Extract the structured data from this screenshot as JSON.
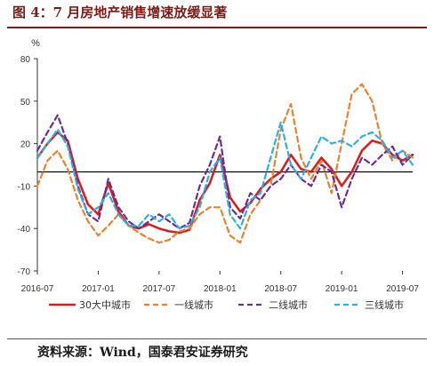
{
  "header": {
    "title": "图 4：7 月房地产销售增速放缓显著"
  },
  "footer": {
    "source": "资料来源：Wind，国泰君安证券研究"
  },
  "colors": {
    "title": "#7a1c17",
    "s1": "#d62020",
    "s2": "#e8822f",
    "s3": "#6a2d91",
    "s4": "#2ab0e8"
  },
  "chart_data": {
    "type": "line",
    "ylabel": "%",
    "ylim": [
      -70,
      80
    ],
    "yticks": [
      80,
      50,
      20,
      -10,
      -40,
      -70
    ],
    "xticks": [
      "2016-07",
      "2017-01",
      "2017-07",
      "2018-01",
      "2018-07",
      "2019-01",
      "2019-07"
    ],
    "x_range": [
      "2016-07",
      "2019-08"
    ],
    "baseline": 0,
    "series": [
      {
        "name": "30大中城市",
        "color": "#d62020",
        "dash": "solid",
        "values": [
          [
            "2016-07",
            10
          ],
          [
            "2016-08",
            20
          ],
          [
            "2016-09",
            28
          ],
          [
            "2016-10",
            22
          ],
          [
            "2016-11",
            -5
          ],
          [
            "2016-12",
            -23
          ],
          [
            "2017-01",
            -30
          ],
          [
            "2017-02",
            -8
          ],
          [
            "2017-03",
            -28
          ],
          [
            "2017-04",
            -38
          ],
          [
            "2017-05",
            -40
          ],
          [
            "2017-06",
            -37
          ],
          [
            "2017-07",
            -40
          ],
          [
            "2017-08",
            -42
          ],
          [
            "2017-09",
            -43
          ],
          [
            "2017-10",
            -41
          ],
          [
            "2017-11",
            -20
          ],
          [
            "2017-12",
            -8
          ],
          [
            "2018-01",
            12
          ],
          [
            "2018-02",
            -18
          ],
          [
            "2018-03",
            -28
          ],
          [
            "2018-04",
            -22
          ],
          [
            "2018-05",
            -12
          ],
          [
            "2018-06",
            -5
          ],
          [
            "2018-07",
            0
          ],
          [
            "2018-08",
            12
          ],
          [
            "2018-09",
            2
          ],
          [
            "2018-10",
            0
          ],
          [
            "2018-11",
            10
          ],
          [
            "2018-12",
            2
          ],
          [
            "2019-01",
            -10
          ],
          [
            "2019-02",
            0
          ],
          [
            "2019-03",
            15
          ],
          [
            "2019-04",
            22
          ],
          [
            "2019-05",
            20
          ],
          [
            "2019-06",
            12
          ],
          [
            "2019-07",
            8
          ],
          [
            "2019-08",
            12
          ]
        ]
      },
      {
        "name": "一线城市",
        "color": "#e8822f",
        "dash": "6,4",
        "values": [
          [
            "2016-07",
            -10
          ],
          [
            "2016-08",
            8
          ],
          [
            "2016-09",
            15
          ],
          [
            "2016-10",
            2
          ],
          [
            "2016-11",
            -20
          ],
          [
            "2016-12",
            -35
          ],
          [
            "2017-01",
            -45
          ],
          [
            "2017-02",
            -38
          ],
          [
            "2017-03",
            -30
          ],
          [
            "2017-04",
            -38
          ],
          [
            "2017-05",
            -43
          ],
          [
            "2017-06",
            -47
          ],
          [
            "2017-07",
            -50
          ],
          [
            "2017-08",
            -48
          ],
          [
            "2017-09",
            -42
          ],
          [
            "2017-10",
            -40
          ],
          [
            "2017-11",
            -30
          ],
          [
            "2017-12",
            -25
          ],
          [
            "2018-01",
            -25
          ],
          [
            "2018-02",
            -45
          ],
          [
            "2018-03",
            -50
          ],
          [
            "2018-04",
            -30
          ],
          [
            "2018-05",
            -20
          ],
          [
            "2018-06",
            -10
          ],
          [
            "2018-07",
            30
          ],
          [
            "2018-08",
            48
          ],
          [
            "2018-09",
            10
          ],
          [
            "2018-10",
            -5
          ],
          [
            "2018-11",
            8
          ],
          [
            "2018-12",
            -15
          ],
          [
            "2019-01",
            20
          ],
          [
            "2019-02",
            55
          ],
          [
            "2019-03",
            62
          ],
          [
            "2019-04",
            50
          ],
          [
            "2019-05",
            20
          ],
          [
            "2019-06",
            8
          ],
          [
            "2019-07",
            15
          ],
          [
            "2019-08",
            10
          ]
        ]
      },
      {
        "name": "二线城市",
        "color": "#6a2d91",
        "dash": "6,4",
        "values": [
          [
            "2016-07",
            15
          ],
          [
            "2016-08",
            28
          ],
          [
            "2016-09",
            40
          ],
          [
            "2016-10",
            20
          ],
          [
            "2016-11",
            -10
          ],
          [
            "2016-12",
            -30
          ],
          [
            "2017-01",
            -35
          ],
          [
            "2017-02",
            -5
          ],
          [
            "2017-03",
            -25
          ],
          [
            "2017-04",
            -35
          ],
          [
            "2017-05",
            -40
          ],
          [
            "2017-06",
            -35
          ],
          [
            "2017-07",
            -30
          ],
          [
            "2017-08",
            -35
          ],
          [
            "2017-09",
            -40
          ],
          [
            "2017-10",
            -36
          ],
          [
            "2017-11",
            -10
          ],
          [
            "2017-12",
            5
          ],
          [
            "2018-01",
            25
          ],
          [
            "2018-02",
            -25
          ],
          [
            "2018-03",
            -33
          ],
          [
            "2018-04",
            -15
          ],
          [
            "2018-05",
            -20
          ],
          [
            "2018-06",
            -10
          ],
          [
            "2018-07",
            -5
          ],
          [
            "2018-08",
            5
          ],
          [
            "2018-09",
            -5
          ],
          [
            "2018-10",
            -10
          ],
          [
            "2018-11",
            5
          ],
          [
            "2018-12",
            0
          ],
          [
            "2019-01",
            -25
          ],
          [
            "2019-02",
            -5
          ],
          [
            "2019-03",
            10
          ],
          [
            "2019-04",
            5
          ],
          [
            "2019-05",
            12
          ],
          [
            "2019-06",
            18
          ],
          [
            "2019-07",
            5
          ],
          [
            "2019-08",
            12
          ]
        ]
      },
      {
        "name": "三线城市",
        "color": "#2ab0e8",
        "dash": "6,4",
        "values": [
          [
            "2016-07",
            10
          ],
          [
            "2016-08",
            20
          ],
          [
            "2016-09",
            30
          ],
          [
            "2016-10",
            18
          ],
          [
            "2016-11",
            -12
          ],
          [
            "2016-12",
            -30
          ],
          [
            "2017-01",
            -25
          ],
          [
            "2017-02",
            -15
          ],
          [
            "2017-03",
            -30
          ],
          [
            "2017-04",
            -38
          ],
          [
            "2017-05",
            -38
          ],
          [
            "2017-06",
            -30
          ],
          [
            "2017-07",
            -35
          ],
          [
            "2017-08",
            -30
          ],
          [
            "2017-09",
            -40
          ],
          [
            "2017-10",
            -38
          ],
          [
            "2017-11",
            -25
          ],
          [
            "2017-12",
            0
          ],
          [
            "2018-01",
            10
          ],
          [
            "2018-02",
            -30
          ],
          [
            "2018-03",
            -40
          ],
          [
            "2018-04",
            -20
          ],
          [
            "2018-05",
            -15
          ],
          [
            "2018-06",
            10
          ],
          [
            "2018-07",
            35
          ],
          [
            "2018-08",
            5
          ],
          [
            "2018-09",
            -5
          ],
          [
            "2018-10",
            10
          ],
          [
            "2018-11",
            25
          ],
          [
            "2018-12",
            20
          ],
          [
            "2019-01",
            22
          ],
          [
            "2019-02",
            18
          ],
          [
            "2019-03",
            25
          ],
          [
            "2019-04",
            28
          ],
          [
            "2019-05",
            22
          ],
          [
            "2019-06",
            10
          ],
          [
            "2019-07",
            15
          ],
          [
            "2019-08",
            5
          ]
        ]
      }
    ]
  }
}
